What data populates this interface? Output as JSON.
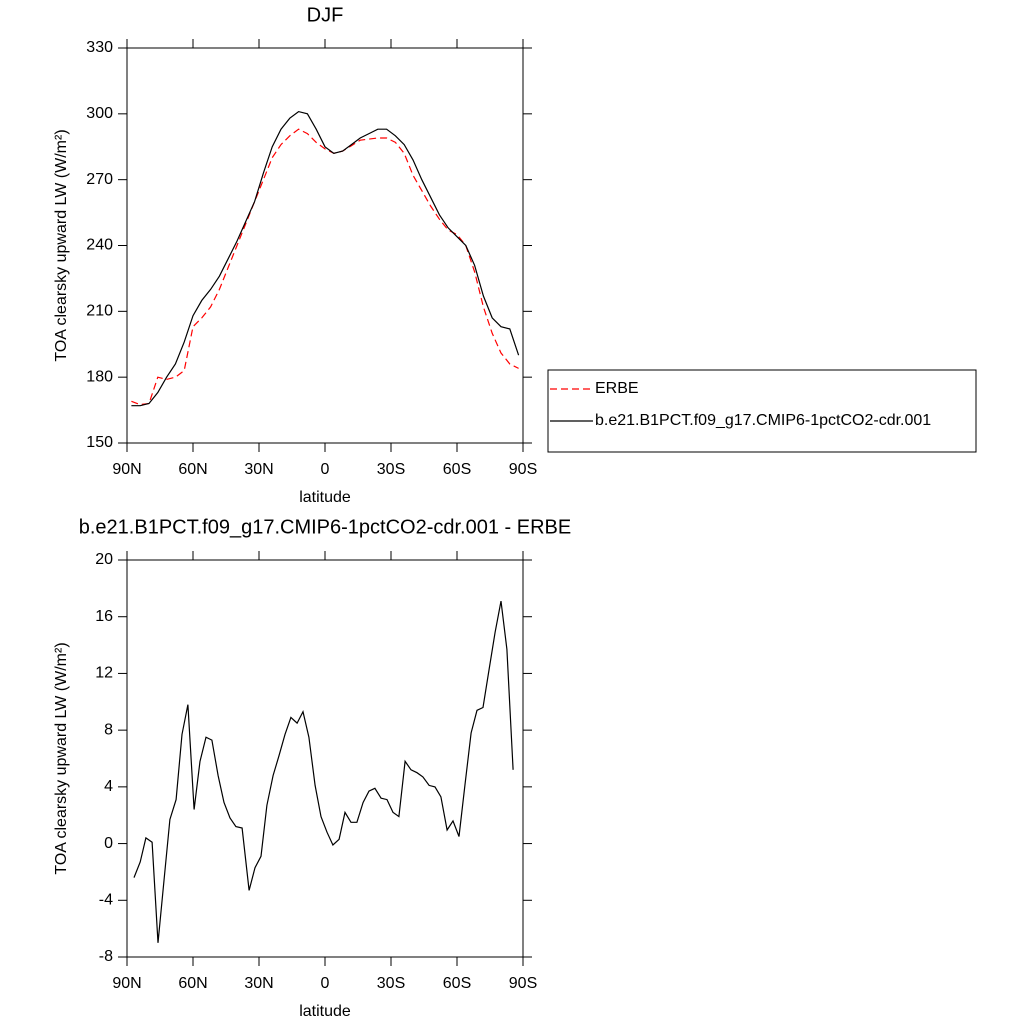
{
  "chart_data": [
    {
      "type": "line",
      "title": "DJF",
      "xlabel": "latitude",
      "ylabel": "TOA clearsky upward LW (W/m²)",
      "x": [
        88,
        84,
        80,
        76,
        72,
        68,
        64,
        60,
        56,
        52,
        48,
        44,
        40,
        36,
        32,
        28,
        24,
        20,
        16,
        12,
        8,
        4,
        0,
        -4,
        -8,
        -12,
        -16,
        -20,
        -24,
        -28,
        -32,
        -36,
        -40,
        -44,
        -48,
        -52,
        -56,
        -60,
        -64,
        -68,
        -72,
        -76,
        -80,
        -84,
        -88
      ],
      "series": [
        {
          "name": "ERBE",
          "color": "#ff0000",
          "dash": "dashed",
          "values": [
            169,
            167.5,
            168,
            180,
            179,
            180,
            183,
            203,
            207,
            212,
            220,
            230,
            240,
            250,
            260,
            270,
            280,
            286,
            290,
            293,
            291,
            287,
            284,
            282,
            283,
            285.5,
            288,
            288.5,
            289,
            289,
            287,
            282,
            272,
            265,
            258,
            252,
            247,
            245,
            240,
            228,
            212,
            200,
            191,
            186,
            184
          ]
        },
        {
          "name": "b.e21.B1PCT.f09_g17.CMIP6-1pctCO2-cdr.001",
          "color": "#000000",
          "dash": "solid",
          "values": [
            167,
            167,
            168,
            173,
            180,
            186,
            196,
            208,
            215,
            220,
            226,
            234,
            242,
            251,
            260,
            273,
            285,
            293,
            298,
            301,
            300,
            293,
            285,
            282,
            283,
            286,
            289,
            291,
            293,
            293,
            290,
            286,
            279,
            270,
            262,
            254,
            248,
            244,
            240,
            231,
            217,
            207,
            203,
            202,
            190
          ]
        }
      ],
      "xlim": [
        90,
        -90
      ],
      "xticks": [
        {
          "value": 90,
          "label": "90N"
        },
        {
          "value": 60,
          "label": "60N"
        },
        {
          "value": 30,
          "label": "30N"
        },
        0,
        {
          "value": -30,
          "label": "30S"
        },
        {
          "value": -60,
          "label": "60S"
        },
        {
          "value": -90,
          "label": "90S"
        }
      ],
      "ylim": [
        150,
        330
      ],
      "yticks": [
        150,
        180,
        210,
        240,
        270,
        300,
        330
      ],
      "legend": "right"
    },
    {
      "type": "line",
      "title": "b.e21.B1PCT.f09_g17.CMIP6-1pctCO2-cdr.001 - ERBE",
      "xlabel": "latitude",
      "ylabel": "TOA clearsky upward LW (W/m²)",
      "x": [
        86.8,
        84,
        81.4,
        78.6,
        75.9,
        73.2,
        70.5,
        67.7,
        65,
        62.3,
        59.5,
        56.8,
        54.1,
        51.4,
        48.6,
        45.9,
        43.2,
        40.5,
        37.7,
        34.5,
        31.8,
        29.1,
        26.4,
        23.6,
        20.9,
        18.2,
        15.5,
        12.7,
        10,
        7.3,
        4.5,
        1.8,
        -0.9,
        -3.6,
        -6.4,
        -9.1,
        -11.8,
        -14.5,
        -17.3,
        -20,
        -22.7,
        -25.5,
        -28.2,
        -30.9,
        -33.6,
        -36.4,
        -39.1,
        -41.8,
        -44.5,
        -47.3,
        -50,
        -52.7,
        -55.5,
        -58.2,
        -60.9,
        -63.6,
        -66.4,
        -69.1,
        -71.8,
        -74.5,
        -77.3,
        -80,
        -82.7,
        -85.5
      ],
      "color": "#000000",
      "values": [
        -2.4,
        -1.3,
        0.4,
        0.1,
        -7.0,
        -2.6,
        1.7,
        3.1,
        7.7,
        9.8,
        2.4,
        5.8,
        7.5,
        7.3,
        4.8,
        2.9,
        1.8,
        1.2,
        1.1,
        -3.3,
        -1.7,
        -0.9,
        2.7,
        4.8,
        6.2,
        7.7,
        8.9,
        8.5,
        9.3,
        7.5,
        4.1,
        1.9,
        0.8,
        -0.1,
        0.3,
        2.2,
        1.5,
        1.5,
        2.9,
        3.7,
        3.9,
        3.2,
        3.1,
        2.2,
        1.9,
        5.8,
        5.2,
        5.0,
        4.7,
        4.1,
        4.0,
        3.3,
        0.96,
        1.6,
        0.5,
        4.1,
        7.8,
        9.4,
        9.6,
        12.2,
        14.9,
        17.1,
        13.7,
        5.2
      ],
      "xlim": [
        90,
        -90
      ],
      "xticks": [
        {
          "value": 90,
          "label": "90N"
        },
        {
          "value": 60,
          "label": "60N"
        },
        {
          "value": 30,
          "label": "30N"
        },
        0,
        {
          "value": -30,
          "label": "30S"
        },
        {
          "value": -60,
          "label": "60S"
        },
        {
          "value": -90,
          "label": "90S"
        }
      ],
      "ylim": [
        -8,
        20
      ],
      "yticks": [
        -8,
        -4,
        0,
        4,
        8,
        12,
        16,
        20
      ]
    }
  ]
}
